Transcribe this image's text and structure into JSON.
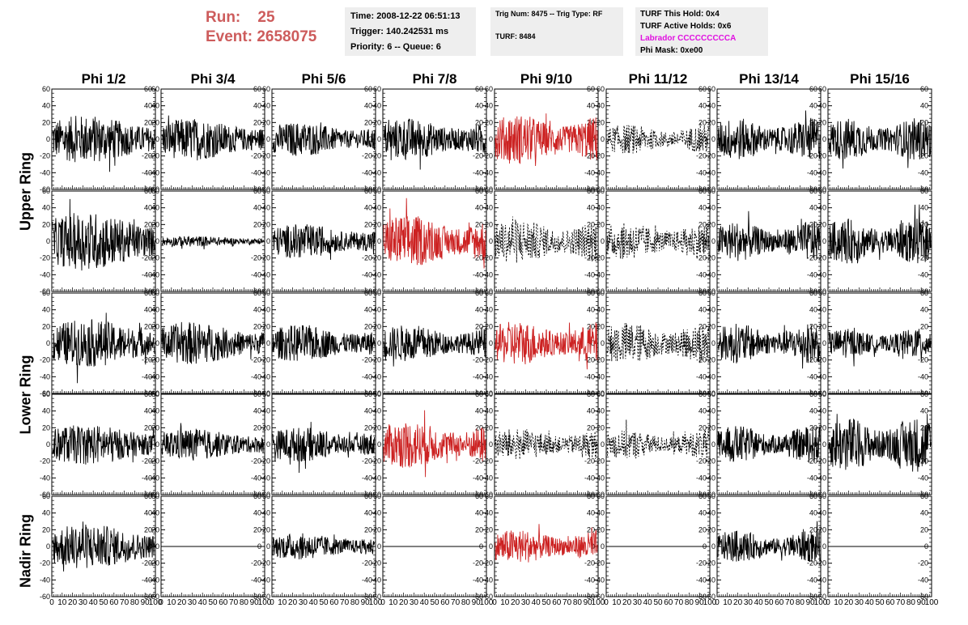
{
  "header": {
    "run_label": "Run:",
    "run_value": "25",
    "event_label": "Event:",
    "event_value": "2658075"
  },
  "info_box_1": {
    "time": "Time: 2008-12-22 06:51:13",
    "trigger": "Trigger: 140.242531 ms",
    "priority": "Priority: 6 -- Queue: 6"
  },
  "info_box_2": {
    "trig": "Trig Num: 8475 -- Trig Type: RF",
    "turf": "TURF: 8484"
  },
  "info_box_3": {
    "hold": "TURF This Hold: 0x4",
    "active": "TURF Active Holds: 0x6",
    "labrador": "Labrador CCCCCCCCCA",
    "phimask": "Phi Mask: 0xe00"
  },
  "columns": [
    "Phi 1/2",
    "Phi 3/4",
    "Phi 5/6",
    "Phi 7/8",
    "Phi 9/10",
    "Phi 11/12",
    "Phi 13/14",
    "Phi 15/16"
  ],
  "rows": [
    "Upper Ring",
    "Upper Ring",
    "Lower Ring",
    "Lower Ring",
    "Nadir Ring"
  ],
  "row_labels": [
    "Upper Ring",
    "Lower Ring",
    "Nadir Ring"
  ],
  "y_ticks": [
    "60",
    "40",
    "20",
    "0",
    "-20",
    "-40",
    "-60"
  ],
  "x_ticks": [
    "0",
    "10",
    "20",
    "30",
    "40",
    "50",
    "60",
    "70",
    "80",
    "90",
    "100"
  ],
  "colors": {
    "trace": "#000000",
    "highlight": "#cc2222",
    "run_text": "#cd5c5c",
    "labrador_text": "#e010e0",
    "box_bg": "#eeeeee"
  },
  "panels": [
    [
      {
        "style": "solid",
        "amp": 18
      },
      {
        "style": "solid",
        "amp": 16
      },
      {
        "style": "solid",
        "amp": 13
      },
      {
        "style": "solid",
        "amp": 16
      },
      {
        "style": "red",
        "amp": 19
      },
      {
        "style": "dashed",
        "amp": 11
      },
      {
        "style": "solid",
        "amp": 16
      },
      {
        "style": "solid",
        "amp": 16
      }
    ],
    [
      {
        "style": "solid",
        "amp": 22
      },
      {
        "style": "solid",
        "amp": 4
      },
      {
        "style": "solid",
        "amp": 13
      },
      {
        "style": "red",
        "amp": 20
      },
      {
        "style": "dashed",
        "amp": 17
      },
      {
        "style": "dashed",
        "amp": 14
      },
      {
        "style": "solid",
        "amp": 15
      },
      {
        "style": "solid",
        "amp": 17
      }
    ],
    [
      {
        "style": "solid",
        "amp": 18
      },
      {
        "style": "solid",
        "amp": 16
      },
      {
        "style": "solid",
        "amp": 14
      },
      {
        "style": "solid",
        "amp": 14
      },
      {
        "style": "red",
        "amp": 17
      },
      {
        "style": "dashed",
        "amp": 16
      },
      {
        "style": "solid",
        "amp": 15
      },
      {
        "style": "solid",
        "amp": 11
      }
    ],
    [
      {
        "style": "solid",
        "amp": 15
      },
      {
        "style": "solid",
        "amp": 12
      },
      {
        "style": "solid",
        "amp": 13
      },
      {
        "style": "red",
        "amp": 18
      },
      {
        "style": "dashed",
        "amp": 12
      },
      {
        "style": "dashed",
        "amp": 11
      },
      {
        "style": "solid",
        "amp": 14
      },
      {
        "style": "solid",
        "amp": 21
      }
    ],
    [
      {
        "style": "solid",
        "amp": 17
      },
      {
        "style": "flat",
        "amp": 0
      },
      {
        "style": "solid",
        "amp": 10
      },
      {
        "style": "flat",
        "amp": 0
      },
      {
        "style": "red",
        "amp": 13
      },
      {
        "style": "flat",
        "amp": 0
      },
      {
        "style": "solid",
        "amp": 12
      },
      {
        "style": "flat",
        "amp": 0
      }
    ]
  ]
}
